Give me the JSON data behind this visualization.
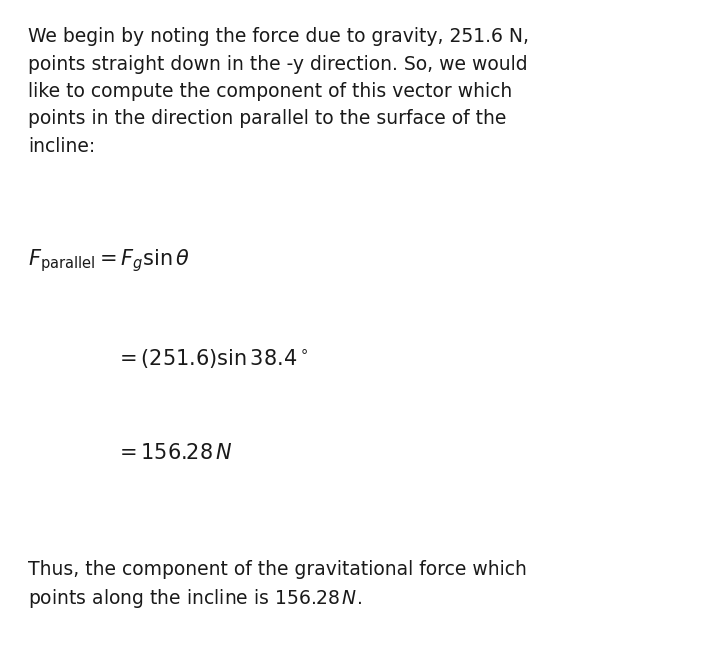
{
  "bg_color": "#ffffff",
  "text_color": "#1a1a1a",
  "paragraph1_lines": [
    "We begin by noting the force due to gravity, 251.6 N,",
    "points straight down in the -y direction. So, we would",
    "like to compute the component of this vector which",
    "points in the direction parallel to the surface of the",
    "incline:"
  ],
  "eq_line1": "$F_{\\mathrm{parallel}} = F_g \\sin\\theta$",
  "eq_line2": "$= (251.6) \\sin 38.4^\\circ$",
  "eq_line3": "$= 156.28\\, N$",
  "paragraph2_lines": [
    "Thus, the component of the gravitational force which",
    "points along the incline is $156.28\\, N$."
  ],
  "font_size_text": 13.5,
  "font_size_eq": 15.0,
  "fig_width": 7.2,
  "fig_height": 6.65,
  "dpi": 100
}
